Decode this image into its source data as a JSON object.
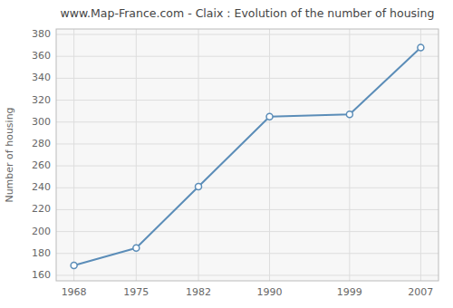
{
  "chart_data": {
    "type": "line",
    "title": "www.Map-France.com - Claix : Evolution of the number of housing",
    "ylabel": "Number of housing",
    "x": [
      1968,
      1975,
      1982,
      1990,
      1999,
      2007
    ],
    "values": [
      169,
      185,
      241,
      305,
      307,
      368
    ],
    "xlim": [
      1966,
      2009
    ],
    "xticks": [
      1968,
      1975,
      1982,
      1990,
      1999,
      2007
    ],
    "ylim": [
      155,
      385
    ],
    "yticks": [
      160,
      180,
      200,
      220,
      240,
      260,
      280,
      300,
      320,
      340,
      360,
      380
    ],
    "color": "#5b8db8",
    "marker": "circle",
    "grid": true
  }
}
